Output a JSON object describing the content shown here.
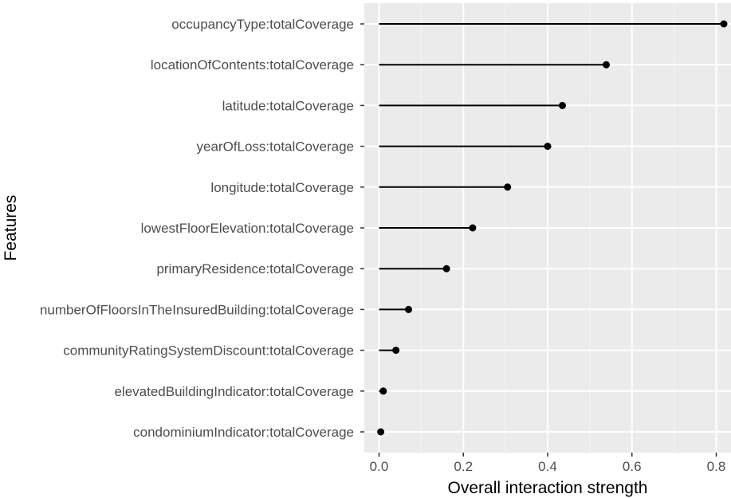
{
  "chart_data": {
    "type": "lollipop",
    "orientation": "horizontal",
    "xlabel": "Overall interaction strength",
    "ylabel": "Features",
    "xlim": [
      -0.035,
      0.835
    ],
    "x_ticks": [
      0.0,
      0.2,
      0.4,
      0.6,
      0.8
    ],
    "x_tick_labels": [
      "0.0",
      "0.2",
      "0.4",
      "0.6",
      "0.8"
    ],
    "grid": true,
    "legend": "none",
    "categories": [
      "occupancyType:totalCoverage",
      "locationOfContents:totalCoverage",
      "latitude:totalCoverage",
      "yearOfLoss:totalCoverage",
      "longitude:totalCoverage",
      "lowestFloorElevation:totalCoverage",
      "primaryResidence:totalCoverage",
      "numberOfFloorsInTheInsuredBuilding:totalCoverage",
      "communityRatingSystemDiscount:totalCoverage",
      "elevatedBuildingIndicator:totalCoverage",
      "condominiumIndicator:totalCoverage"
    ],
    "values": [
      0.818,
      0.539,
      0.435,
      0.4,
      0.305,
      0.222,
      0.16,
      0.07,
      0.04,
      0.01,
      0.004
    ]
  },
  "colors": {
    "panel_background": "#ebebeb",
    "grid_major": "#ffffff",
    "grid_minor": "#f5f5f5",
    "marks": "#000000",
    "tick_text": "#4d4d4d",
    "tick_mark": "#333333"
  }
}
